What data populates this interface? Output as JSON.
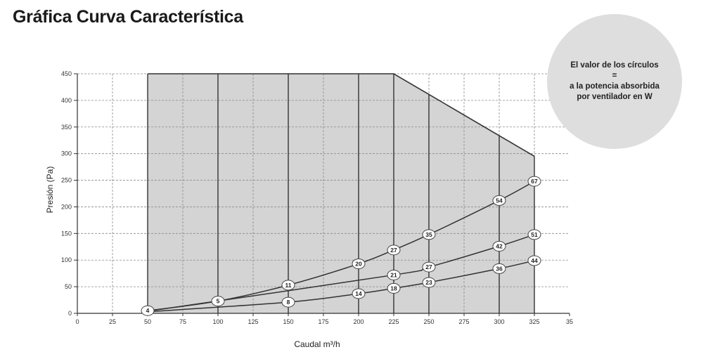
{
  "page": {
    "title": "Gráfica Curva Característica"
  },
  "info_circle": {
    "lines": [
      "El valor de los círculos",
      "=",
      "a la potencia absorbida",
      "por ventilador en W"
    ],
    "fill": "#dedede"
  },
  "chart_data": {
    "type": "line",
    "xlabel": "Caudal m³/h",
    "ylabel": "Presión (Pa)",
    "xlim": [
      0,
      350
    ],
    "ylim": [
      0,
      450
    ],
    "x_ticks": [
      "0",
      "25",
      "50",
      "75",
      "100",
      "125",
      "150",
      "175",
      "200",
      "225",
      "250",
      "275",
      "300",
      "325",
      "35"
    ],
    "y_ticks": [
      "0",
      "50",
      "100",
      "150",
      "200",
      "250",
      "300",
      "350",
      "400",
      "450"
    ],
    "grid": true,
    "operating_area_fill": "#d4d4d4",
    "envelope": {
      "x": [
        50,
        50,
        225,
        325,
        325
      ],
      "y": [
        0,
        450,
        450,
        295,
        0
      ]
    },
    "vertical_lines_x": [
      50,
      100,
      150,
      200,
      225,
      250,
      300,
      325
    ],
    "series": [
      {
        "points": [
          {
            "x": 50,
            "y": 5,
            "label": "4"
          },
          {
            "x": 100,
            "y": 23,
            "label": "5"
          },
          {
            "x": 150,
            "y": 53,
            "label": "11"
          },
          {
            "x": 200,
            "y": 93,
            "label": "20"
          },
          {
            "x": 225,
            "y": 119,
            "label": "27"
          },
          {
            "x": 250,
            "y": 148,
            "label": "35"
          },
          {
            "x": 300,
            "y": 212,
            "label": "54"
          },
          {
            "x": 325,
            "y": 248,
            "label": "67"
          }
        ]
      },
      {
        "points": [
          {
            "x": 50,
            "y": 4
          },
          {
            "x": 225,
            "y": 72,
            "label": "21"
          },
          {
            "x": 250,
            "y": 87,
            "label": "27"
          },
          {
            "x": 300,
            "y": 126,
            "label": "42"
          },
          {
            "x": 325,
            "y": 148,
            "label": "51"
          }
        ]
      },
      {
        "points": [
          {
            "x": 50,
            "y": 3
          },
          {
            "x": 150,
            "y": 21,
            "label": "8"
          },
          {
            "x": 200,
            "y": 37,
            "label": "14"
          },
          {
            "x": 225,
            "y": 47,
            "label": "18"
          },
          {
            "x": 250,
            "y": 58,
            "label": "23"
          },
          {
            "x": 300,
            "y": 84,
            "label": "36"
          },
          {
            "x": 325,
            "y": 99,
            "label": "44"
          }
        ]
      }
    ]
  }
}
